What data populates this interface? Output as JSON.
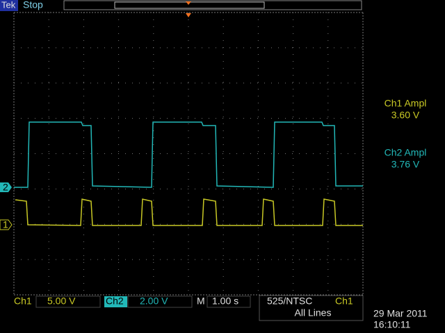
{
  "header": {
    "brand": "Tek",
    "status": "Stop"
  },
  "measurements": [
    {
      "label": "Ch1 Ampl",
      "value": "3.60 V"
    },
    {
      "label": "Ch2 Ampl",
      "value": "3.76 V"
    }
  ],
  "channel_markers": [
    "2",
    "1"
  ],
  "footer": {
    "ch1_label": "Ch1",
    "ch1_scale": "5.00 V",
    "ch2_label": "Ch2",
    "ch2_scale": "2.00 V",
    "time_label": "M",
    "time_scale": "1.00 s",
    "trigger_source": "525/NTSC",
    "trigger_channel": "Ch1",
    "trigger_lines": "All Lines",
    "date": "29 Mar 2011",
    "time": "16:10:11"
  }
}
